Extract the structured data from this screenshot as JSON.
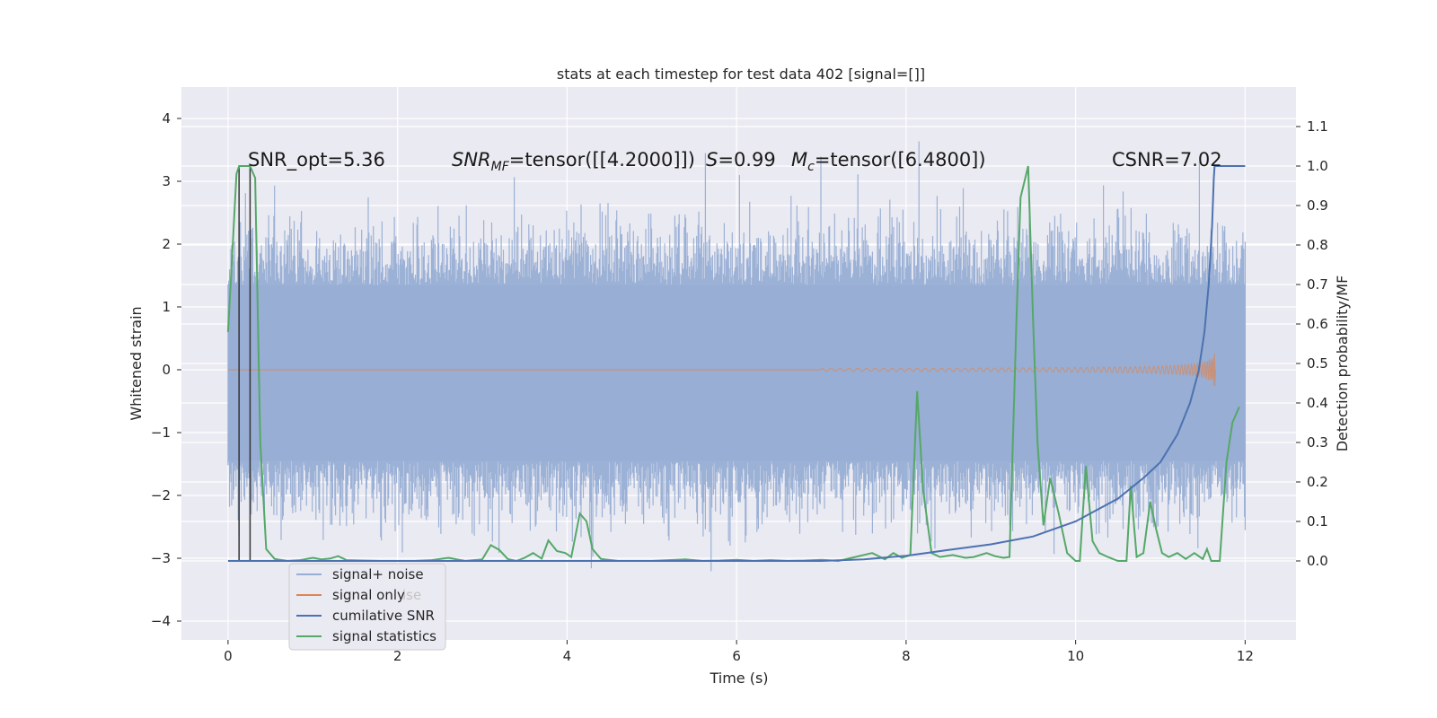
{
  "chart_data": {
    "type": "line",
    "title": "stats at each timestep for test data 402 [signal=[]]",
    "xlabel": "Time (s)",
    "ylabel_left": "Whitened strain",
    "ylabel_right": "Detection probability/MF",
    "xlim": [
      -0.55,
      12.6
    ],
    "ylim_left": [
      -4.3,
      4.5
    ],
    "ylim_right": [
      -0.2,
      1.2
    ],
    "xticks": [
      "0",
      "2",
      "4",
      "6",
      "8",
      "10",
      "12"
    ],
    "xtick_values": [
      0,
      2,
      4,
      6,
      8,
      10,
      12
    ],
    "yticks_left": [
      "−4",
      "−3",
      "−2",
      "−1",
      "0",
      "1",
      "2",
      "3",
      "4"
    ],
    "ytick_values_left": [
      -4,
      -3,
      -2,
      -1,
      0,
      1,
      2,
      3,
      4
    ],
    "yticks_right": [
      "0.0",
      "0.1",
      "0.2",
      "0.3",
      "0.4",
      "0.5",
      "0.6",
      "0.7",
      "0.8",
      "0.9",
      "1.0",
      "1.1"
    ],
    "ytick_values_right": [
      0.0,
      0.1,
      0.2,
      0.3,
      0.4,
      0.5,
      0.6,
      0.7,
      0.8,
      0.9,
      1.0,
      1.1
    ],
    "annotations": {
      "snr_opt": "SNR_opt=5.36",
      "snr_mf_sym": "SNR",
      "snr_mf_sub": "MF",
      "snr_mf_val": "=tensor([[4.2000]])",
      "s_sym": "S",
      "s_val": "=0.99",
      "mc_sym": "M",
      "mc_sub": "c",
      "mc_val": "=tensor([6.4800])",
      "csnr": "CSNR=7.02"
    },
    "legend": {
      "placement": "lower-left",
      "entries": [
        "signal+ noise",
        "signal only",
        "cumilative SNR",
        "signal statistics"
      ],
      "ghost_text": "ise"
    },
    "vertical_markers_x": [
      0.13,
      0.26
    ],
    "colors": {
      "noise": "#98aed4",
      "signal": "#dd8452",
      "cumulative": "#4c72b0",
      "statistics": "#55a868",
      "background": "#eaeaf2",
      "grid": "#ffffff",
      "marker": "#333333"
    },
    "series": [
      {
        "name": "signal statistics",
        "axis": "right",
        "points": [
          [
            0.0,
            0.58
          ],
          [
            0.06,
            0.82
          ],
          [
            0.1,
            0.98
          ],
          [
            0.13,
            1.0
          ],
          [
            0.2,
            1.0
          ],
          [
            0.26,
            1.0
          ],
          [
            0.32,
            0.97
          ],
          [
            0.38,
            0.3
          ],
          [
            0.45,
            0.03
          ],
          [
            0.55,
            0.005
          ],
          [
            0.7,
            0.0
          ],
          [
            0.85,
            0.002
          ],
          [
            1.0,
            0.008
          ],
          [
            1.1,
            0.004
          ],
          [
            1.2,
            0.006
          ],
          [
            1.3,
            0.012
          ],
          [
            1.4,
            0.002
          ],
          [
            1.6,
            0.001
          ],
          [
            1.8,
            0.0
          ],
          [
            2.0,
            0.0
          ],
          [
            2.2,
            0.0
          ],
          [
            2.4,
            0.002
          ],
          [
            2.6,
            0.008
          ],
          [
            2.8,
            0.0
          ],
          [
            3.0,
            0.004
          ],
          [
            3.1,
            0.04
          ],
          [
            3.2,
            0.028
          ],
          [
            3.3,
            0.005
          ],
          [
            3.4,
            0.0
          ],
          [
            3.5,
            0.008
          ],
          [
            3.6,
            0.02
          ],
          [
            3.7,
            0.006
          ],
          [
            3.78,
            0.052
          ],
          [
            3.88,
            0.025
          ],
          [
            3.98,
            0.02
          ],
          [
            4.05,
            0.01
          ],
          [
            4.15,
            0.12
          ],
          [
            4.23,
            0.1
          ],
          [
            4.3,
            0.03
          ],
          [
            4.4,
            0.005
          ],
          [
            4.6,
            0.0
          ],
          [
            4.8,
            0.0
          ],
          [
            5.0,
            0.0
          ],
          [
            5.2,
            0.002
          ],
          [
            5.4,
            0.004
          ],
          [
            5.6,
            0.0
          ],
          [
            5.8,
            0.001
          ],
          [
            6.0,
            0.003
          ],
          [
            6.2,
            0.0
          ],
          [
            6.4,
            0.002
          ],
          [
            6.6,
            0.0
          ],
          [
            6.8,
            0.001
          ],
          [
            7.0,
            0.003
          ],
          [
            7.2,
            0.0
          ],
          [
            7.4,
            0.01
          ],
          [
            7.6,
            0.02
          ],
          [
            7.75,
            0.004
          ],
          [
            7.85,
            0.02
          ],
          [
            7.95,
            0.008
          ],
          [
            8.05,
            0.015
          ],
          [
            8.13,
            0.43
          ],
          [
            8.2,
            0.18
          ],
          [
            8.3,
            0.02
          ],
          [
            8.4,
            0.01
          ],
          [
            8.55,
            0.015
          ],
          [
            8.7,
            0.008
          ],
          [
            8.8,
            0.01
          ],
          [
            8.95,
            0.02
          ],
          [
            9.05,
            0.012
          ],
          [
            9.15,
            0.008
          ],
          [
            9.22,
            0.01
          ],
          [
            9.3,
            0.6
          ],
          [
            9.35,
            0.92
          ],
          [
            9.44,
            1.0
          ],
          [
            9.5,
            0.6
          ],
          [
            9.55,
            0.3
          ],
          [
            9.62,
            0.09
          ],
          [
            9.7,
            0.21
          ],
          [
            9.8,
            0.12
          ],
          [
            9.9,
            0.02
          ],
          [
            10.0,
            0.0
          ],
          [
            10.05,
            0.0
          ],
          [
            10.12,
            0.24
          ],
          [
            10.2,
            0.05
          ],
          [
            10.28,
            0.02
          ],
          [
            10.38,
            0.01
          ],
          [
            10.5,
            0.0
          ],
          [
            10.6,
            0.0
          ],
          [
            10.65,
            0.19
          ],
          [
            10.72,
            0.01
          ],
          [
            10.8,
            0.02
          ],
          [
            10.88,
            0.15
          ],
          [
            10.95,
            0.08
          ],
          [
            11.02,
            0.02
          ],
          [
            11.1,
            0.01
          ],
          [
            11.2,
            0.02
          ],
          [
            11.3,
            0.005
          ],
          [
            11.4,
            0.02
          ],
          [
            11.5,
            0.005
          ],
          [
            11.55,
            0.03
          ],
          [
            11.6,
            0.0
          ],
          [
            11.7,
            0.0
          ],
          [
            11.78,
            0.25
          ],
          [
            11.85,
            0.35
          ],
          [
            11.93,
            0.39
          ]
        ]
      },
      {
        "name": "cumilative SNR",
        "axis": "right",
        "points": [
          [
            0.0,
            0.0
          ],
          [
            7.0,
            0.0
          ],
          [
            7.5,
            0.004
          ],
          [
            8.0,
            0.013
          ],
          [
            8.5,
            0.028
          ],
          [
            9.0,
            0.042
          ],
          [
            9.5,
            0.062
          ],
          [
            10.0,
            0.1
          ],
          [
            10.5,
            0.158
          ],
          [
            10.8,
            0.21
          ],
          [
            11.0,
            0.25
          ],
          [
            11.2,
            0.32
          ],
          [
            11.35,
            0.4
          ],
          [
            11.45,
            0.48
          ],
          [
            11.52,
            0.58
          ],
          [
            11.57,
            0.7
          ],
          [
            11.61,
            0.85
          ],
          [
            11.63,
            0.97
          ],
          [
            11.64,
            1.0
          ],
          [
            12.0,
            1.0
          ]
        ]
      }
    ]
  }
}
